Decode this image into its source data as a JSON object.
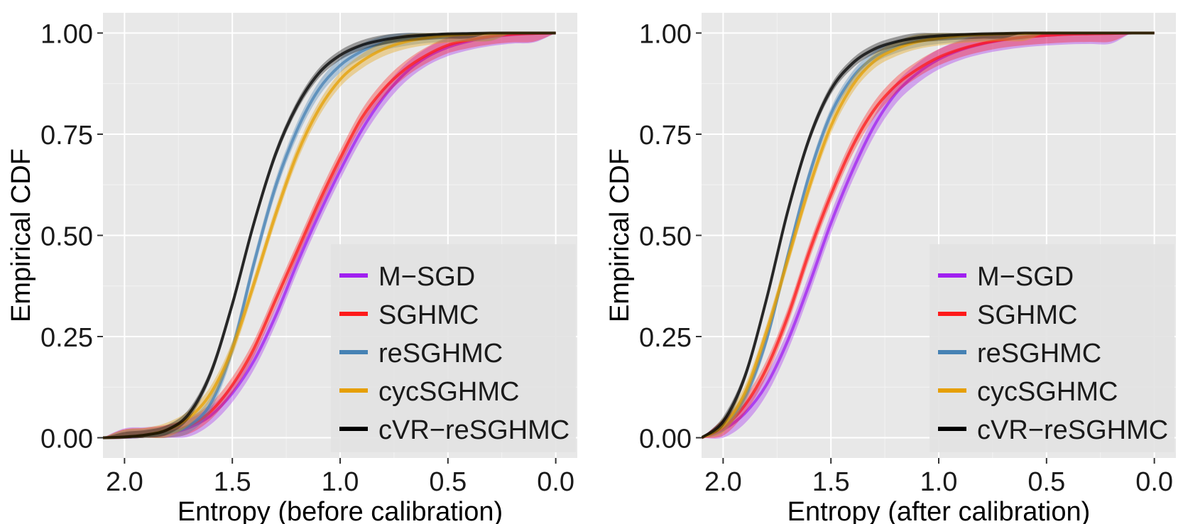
{
  "chart_data": [
    {
      "type": "line",
      "xlabel": "Entropy (before calibration)",
      "ylabel": "Empirical CDF",
      "xlim": [
        2.1,
        -0.1
      ],
      "ylim": [
        -0.05,
        1.05
      ],
      "xticks": [
        "2.0",
        "1.5",
        "1.0",
        "0.5",
        "0.0"
      ],
      "xtick_values": [
        2.0,
        1.5,
        1.0,
        0.5,
        0.0
      ],
      "yticks": [
        "0.00",
        "0.25",
        "0.50",
        "0.75",
        "1.00"
      ],
      "ytick_values": [
        0,
        0.25,
        0.5,
        0.75,
        1.0
      ],
      "legend": {
        "position": "bottom-right"
      },
      "series": [
        {
          "name": "M−SGD",
          "color": "#a020f0",
          "band": 0.022,
          "values": [
            [
              2.1,
              0
            ],
            [
              2.0,
              0.001
            ],
            [
              1.9,
              0.004
            ],
            [
              1.8,
              0.01
            ],
            [
              1.7,
              0.025
            ],
            [
              1.6,
              0.055
            ],
            [
              1.5,
              0.11
            ],
            [
              1.4,
              0.19
            ],
            [
              1.3,
              0.3
            ],
            [
              1.2,
              0.43
            ],
            [
              1.1,
              0.55
            ],
            [
              1.0,
              0.66
            ],
            [
              0.9,
              0.76
            ],
            [
              0.8,
              0.84
            ],
            [
              0.7,
              0.9
            ],
            [
              0.6,
              0.94
            ],
            [
              0.5,
              0.965
            ],
            [
              0.4,
              0.98
            ],
            [
              0.3,
              0.99
            ],
            [
              0.2,
              0.996
            ],
            [
              0.1,
              0.999
            ],
            [
              0.0,
              1.0
            ]
          ]
        },
        {
          "name": "SGHMC",
          "color": "#ff1a1a",
          "band": 0.02,
          "values": [
            [
              2.1,
              0
            ],
            [
              2.0,
              0.001
            ],
            [
              1.9,
              0.004
            ],
            [
              1.8,
              0.012
            ],
            [
              1.7,
              0.03
            ],
            [
              1.6,
              0.065
            ],
            [
              1.5,
              0.13
            ],
            [
              1.4,
              0.22
            ],
            [
              1.3,
              0.34
            ],
            [
              1.2,
              0.46
            ],
            [
              1.1,
              0.58
            ],
            [
              1.0,
              0.69
            ],
            [
              0.9,
              0.79
            ],
            [
              0.8,
              0.86
            ],
            [
              0.7,
              0.91
            ],
            [
              0.6,
              0.945
            ],
            [
              0.5,
              0.97
            ],
            [
              0.4,
              0.983
            ],
            [
              0.3,
              0.992
            ],
            [
              0.2,
              0.997
            ],
            [
              0.1,
              0.999
            ],
            [
              0.0,
              1.0
            ]
          ]
        },
        {
          "name": "reSGHMC",
          "color": "#4682b4",
          "band": 0.018,
          "values": [
            [
              2.1,
              0
            ],
            [
              2.0,
              0.001
            ],
            [
              1.9,
              0.004
            ],
            [
              1.8,
              0.012
            ],
            [
              1.7,
              0.03
            ],
            [
              1.6,
              0.085
            ],
            [
              1.5,
              0.22
            ],
            [
              1.4,
              0.43
            ],
            [
              1.3,
              0.62
            ],
            [
              1.2,
              0.76
            ],
            [
              1.1,
              0.86
            ],
            [
              1.0,
              0.92
            ],
            [
              0.9,
              0.955
            ],
            [
              0.8,
              0.975
            ],
            [
              0.7,
              0.986
            ],
            [
              0.6,
              0.993
            ],
            [
              0.5,
              0.996
            ],
            [
              0.4,
              0.998
            ],
            [
              0.3,
              0.999
            ],
            [
              0.2,
              1.0
            ],
            [
              0.1,
              1.0
            ],
            [
              0.0,
              1.0
            ]
          ]
        },
        {
          "name": "cycSGHMC",
          "color": "#e69f00",
          "band": 0.018,
          "values": [
            [
              2.1,
              0
            ],
            [
              2.0,
              0.002
            ],
            [
              1.9,
              0.007
            ],
            [
              1.8,
              0.02
            ],
            [
              1.7,
              0.05
            ],
            [
              1.6,
              0.11
            ],
            [
              1.5,
              0.22
            ],
            [
              1.4,
              0.38
            ],
            [
              1.3,
              0.55
            ],
            [
              1.2,
              0.7
            ],
            [
              1.1,
              0.81
            ],
            [
              1.0,
              0.885
            ],
            [
              0.9,
              0.93
            ],
            [
              0.8,
              0.96
            ],
            [
              0.7,
              0.978
            ],
            [
              0.6,
              0.988
            ],
            [
              0.5,
              0.994
            ],
            [
              0.4,
              0.997
            ],
            [
              0.3,
              0.999
            ],
            [
              0.2,
              1.0
            ],
            [
              0.1,
              1.0
            ],
            [
              0.0,
              1.0
            ]
          ]
        },
        {
          "name": "cVR−reSGHMC",
          "color": "#000000",
          "band": 0.012,
          "values": [
            [
              2.1,
              0
            ],
            [
              2.0,
              0.002
            ],
            [
              1.9,
              0.007
            ],
            [
              1.8,
              0.02
            ],
            [
              1.7,
              0.06
            ],
            [
              1.6,
              0.16
            ],
            [
              1.5,
              0.33
            ],
            [
              1.4,
              0.53
            ],
            [
              1.3,
              0.7
            ],
            [
              1.2,
              0.82
            ],
            [
              1.1,
              0.9
            ],
            [
              1.0,
              0.945
            ],
            [
              0.9,
              0.97
            ],
            [
              0.8,
              0.983
            ],
            [
              0.7,
              0.991
            ],
            [
              0.6,
              0.995
            ],
            [
              0.5,
              0.998
            ],
            [
              0.4,
              0.999
            ],
            [
              0.3,
              1.0
            ],
            [
              0.2,
              1.0
            ],
            [
              0.1,
              1.0
            ],
            [
              0.0,
              1.0
            ]
          ]
        }
      ]
    },
    {
      "type": "line",
      "xlabel": "Entropy (after calibration)",
      "ylabel": "Empirical CDF",
      "xlim": [
        2.1,
        -0.1
      ],
      "ylim": [
        -0.05,
        1.05
      ],
      "xticks": [
        "2.0",
        "1.5",
        "1.0",
        "0.5",
        "0.0"
      ],
      "xtick_values": [
        2.0,
        1.5,
        1.0,
        0.5,
        0.0
      ],
      "yticks": [
        "0.00",
        "0.25",
        "0.50",
        "0.75",
        "1.00"
      ],
      "ytick_values": [
        0,
        0.25,
        0.5,
        0.75,
        1.0
      ],
      "legend": {
        "position": "bottom-right"
      },
      "series": [
        {
          "name": "M−SGD",
          "color": "#a020f0",
          "band": 0.025,
          "values": [
            [
              2.1,
              0
            ],
            [
              2.0,
              0.02
            ],
            [
              1.9,
              0.06
            ],
            [
              1.8,
              0.13
            ],
            [
              1.7,
              0.24
            ],
            [
              1.6,
              0.38
            ],
            [
              1.5,
              0.53
            ],
            [
              1.4,
              0.66
            ],
            [
              1.3,
              0.77
            ],
            [
              1.2,
              0.85
            ],
            [
              1.1,
              0.9
            ],
            [
              1.0,
              0.935
            ],
            [
              0.9,
              0.958
            ],
            [
              0.8,
              0.973
            ],
            [
              0.7,
              0.983
            ],
            [
              0.6,
              0.99
            ],
            [
              0.5,
              0.994
            ],
            [
              0.4,
              0.997
            ],
            [
              0.3,
              0.998
            ],
            [
              0.2,
              0.999
            ],
            [
              0.1,
              1.0
            ],
            [
              0.0,
              1.0
            ]
          ]
        },
        {
          "name": "SGHMC",
          "color": "#ff1a1a",
          "band": 0.02,
          "values": [
            [
              2.1,
              0
            ],
            [
              2.0,
              0.025
            ],
            [
              1.9,
              0.08
            ],
            [
              1.8,
              0.17
            ],
            [
              1.7,
              0.3
            ],
            [
              1.6,
              0.46
            ],
            [
              1.5,
              0.6
            ],
            [
              1.4,
              0.72
            ],
            [
              1.3,
              0.81
            ],
            [
              1.2,
              0.87
            ],
            [
              1.1,
              0.91
            ],
            [
              1.0,
              0.94
            ],
            [
              0.9,
              0.96
            ],
            [
              0.8,
              0.974
            ],
            [
              0.7,
              0.984
            ],
            [
              0.6,
              0.99
            ],
            [
              0.5,
              0.994
            ],
            [
              0.4,
              0.997
            ],
            [
              0.3,
              0.998
            ],
            [
              0.2,
              0.999
            ],
            [
              0.1,
              1.0
            ],
            [
              0.0,
              1.0
            ]
          ]
        },
        {
          "name": "reSGHMC",
          "color": "#4682b4",
          "band": 0.015,
          "values": [
            [
              2.1,
              0
            ],
            [
              2.0,
              0.03
            ],
            [
              1.9,
              0.1
            ],
            [
              1.8,
              0.24
            ],
            [
              1.7,
              0.45
            ],
            [
              1.6,
              0.65
            ],
            [
              1.5,
              0.8
            ],
            [
              1.4,
              0.89
            ],
            [
              1.3,
              0.94
            ],
            [
              1.2,
              0.965
            ],
            [
              1.1,
              0.98
            ],
            [
              1.0,
              0.988
            ],
            [
              0.9,
              0.993
            ],
            [
              0.8,
              0.996
            ],
            [
              0.7,
              0.998
            ],
            [
              0.6,
              0.999
            ],
            [
              0.5,
              1.0
            ],
            [
              0.4,
              1.0
            ],
            [
              0.3,
              1.0
            ],
            [
              0.2,
              1.0
            ],
            [
              0.1,
              1.0
            ],
            [
              0.0,
              1.0
            ]
          ]
        },
        {
          "name": "cycSGHMC",
          "color": "#e69f00",
          "band": 0.018,
          "values": [
            [
              2.1,
              0
            ],
            [
              2.0,
              0.03
            ],
            [
              1.9,
              0.11
            ],
            [
              1.8,
              0.26
            ],
            [
              1.7,
              0.44
            ],
            [
              1.6,
              0.62
            ],
            [
              1.5,
              0.77
            ],
            [
              1.4,
              0.87
            ],
            [
              1.3,
              0.93
            ],
            [
              1.2,
              0.96
            ],
            [
              1.1,
              0.978
            ],
            [
              1.0,
              0.987
            ],
            [
              0.9,
              0.993
            ],
            [
              0.8,
              0.996
            ],
            [
              0.7,
              0.998
            ],
            [
              0.6,
              0.999
            ],
            [
              0.5,
              1.0
            ],
            [
              0.4,
              1.0
            ],
            [
              0.3,
              1.0
            ],
            [
              0.2,
              1.0
            ],
            [
              0.1,
              1.0
            ],
            [
              0.0,
              1.0
            ]
          ]
        },
        {
          "name": "cVR−reSGHMC",
          "color": "#000000",
          "band": 0.012,
          "values": [
            [
              2.1,
              0
            ],
            [
              2.0,
              0.04
            ],
            [
              1.9,
              0.15
            ],
            [
              1.8,
              0.34
            ],
            [
              1.7,
              0.56
            ],
            [
              1.6,
              0.74
            ],
            [
              1.5,
              0.86
            ],
            [
              1.4,
              0.925
            ],
            [
              1.3,
              0.96
            ],
            [
              1.2,
              0.978
            ],
            [
              1.1,
              0.988
            ],
            [
              1.0,
              0.993
            ],
            [
              0.9,
              0.996
            ],
            [
              0.8,
              0.998
            ],
            [
              0.7,
              0.999
            ],
            [
              0.6,
              1.0
            ],
            [
              0.5,
              1.0
            ],
            [
              0.4,
              1.0
            ],
            [
              0.3,
              1.0
            ],
            [
              0.2,
              1.0
            ],
            [
              0.1,
              1.0
            ],
            [
              0.0,
              1.0
            ]
          ]
        }
      ]
    }
  ]
}
